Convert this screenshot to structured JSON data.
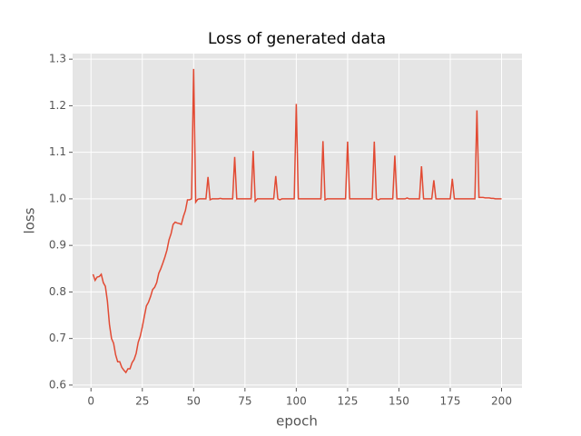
{
  "chart_data": {
    "type": "line",
    "title": "Loss of generated data",
    "x_label": "epoch",
    "y_label": "loss",
    "xlim": [
      -8.95,
      209.95
    ],
    "ylim": [
      0.594,
      1.312
    ],
    "xticks": [
      0,
      25,
      50,
      75,
      100,
      125,
      150,
      175,
      200
    ],
    "yticks": [
      0.6,
      0.7,
      0.8,
      0.9,
      {
        "value": 1.0,
        "label": "1.0"
      },
      1.1,
      1.2,
      1.3
    ],
    "grid": true,
    "series": [
      {
        "color": "#E24A33",
        "x": [
          1,
          2,
          3,
          4,
          5,
          6,
          7,
          8,
          9,
          10,
          11,
          12,
          13,
          14,
          15,
          16,
          17,
          18,
          19,
          20,
          21,
          22,
          23,
          24,
          25,
          26,
          27,
          28,
          29,
          30,
          31,
          32,
          33,
          34,
          35,
          36,
          37,
          38,
          39,
          40,
          41,
          42,
          43,
          44,
          45,
          46,
          47,
          48,
          49,
          50,
          51,
          52,
          53,
          54,
          55,
          56,
          57,
          58,
          59,
          60,
          61,
          62,
          63,
          64,
          65,
          66,
          67,
          68,
          69,
          70,
          71,
          72,
          73,
          74,
          75,
          76,
          77,
          78,
          79,
          80,
          81,
          82,
          83,
          84,
          85,
          86,
          87,
          88,
          89,
          90,
          91,
          92,
          93,
          94,
          95,
          96,
          97,
          98,
          99,
          100,
          101,
          102,
          103,
          104,
          105,
          106,
          107,
          108,
          109,
          110,
          111,
          112,
          113,
          114,
          115,
          116,
          117,
          118,
          119,
          120,
          121,
          122,
          123,
          124,
          125,
          126,
          127,
          128,
          129,
          130,
          131,
          132,
          133,
          134,
          135,
          136,
          137,
          138,
          139,
          140,
          141,
          142,
          143,
          144,
          145,
          146,
          147,
          148,
          149,
          150,
          151,
          152,
          153,
          154,
          155,
          156,
          157,
          158,
          159,
          160,
          161,
          162,
          163,
          164,
          165,
          166,
          167,
          168,
          169,
          170,
          171,
          172,
          173,
          174,
          175,
          176,
          177,
          178,
          179,
          180,
          181,
          182,
          183,
          184,
          185,
          186,
          187,
          188,
          189,
          190,
          191,
          192,
          193,
          194,
          195,
          196,
          197,
          198,
          199,
          200
        ],
        "values": [
          0.838,
          0.825,
          0.832,
          0.833,
          0.838,
          0.82,
          0.812,
          0.78,
          0.73,
          0.7,
          0.69,
          0.665,
          0.65,
          0.65,
          0.638,
          0.632,
          0.627,
          0.635,
          0.635,
          0.648,
          0.655,
          0.668,
          0.692,
          0.705,
          0.725,
          0.748,
          0.77,
          0.778,
          0.79,
          0.805,
          0.81,
          0.82,
          0.84,
          0.85,
          0.862,
          0.875,
          0.89,
          0.912,
          0.925,
          0.945,
          0.95,
          0.948,
          0.947,
          0.945,
          0.962,
          0.975,
          0.998,
          0.998,
          1.0,
          1.279,
          0.993,
          0.999,
          1.0,
          1.0,
          1.0,
          1.0,
          1.047,
          0.998,
          1.0,
          1.0,
          1.0,
          1.0,
          1.001,
          1.0,
          1.0,
          1.0,
          1.0,
          1.0,
          1.0,
          1.09,
          1.0,
          1.0,
          1.0,
          1.0,
          1.0,
          1.0,
          1.0,
          1.0,
          1.103,
          0.995,
          1.0,
          1.0,
          1.0,
          1.0,
          1.0,
          1.0,
          1.0,
          1.0,
          1.0,
          1.049,
          1.0,
          0.998,
          1.0,
          1.0,
          1.0,
          1.0,
          1.0,
          1.0,
          1.0,
          1.204,
          1.0,
          1.0,
          1.0,
          1.0,
          1.0,
          1.0,
          1.0,
          1.0,
          1.0,
          1.0,
          1.0,
          1.0,
          1.124,
          0.998,
          1.0,
          1.0,
          1.0,
          1.0,
          1.0,
          1.0,
          1.0,
          1.0,
          1.0,
          1.0,
          1.123,
          1.0,
          1.0,
          1.0,
          1.0,
          1.0,
          1.0,
          1.0,
          1.0,
          1.0,
          1.0,
          1.0,
          1.0,
          1.123,
          1.0,
          0.998,
          1.0,
          1.0,
          1.0,
          1.0,
          1.0,
          1.0,
          1.0,
          1.093,
          1.0,
          1.0,
          1.0,
          1.0,
          1.0,
          1.002,
          1.0,
          1.0,
          1.0,
          1.0,
          1.0,
          1.0,
          1.07,
          1.0,
          1.0,
          1.0,
          1.0,
          1.0,
          1.04,
          1.0,
          1.0,
          1.0,
          1.0,
          1.0,
          1.0,
          1.0,
          1.0,
          1.043,
          1.0,
          1.0,
          1.0,
          1.0,
          1.0,
          1.0,
          1.0,
          1.0,
          1.0,
          1.0,
          1.0,
          1.19,
          1.003,
          1.003,
          1.003,
          1.002,
          1.002,
          1.002,
          1.001,
          1.001,
          1.0,
          1.0,
          1.0,
          1.0
        ]
      }
    ]
  }
}
